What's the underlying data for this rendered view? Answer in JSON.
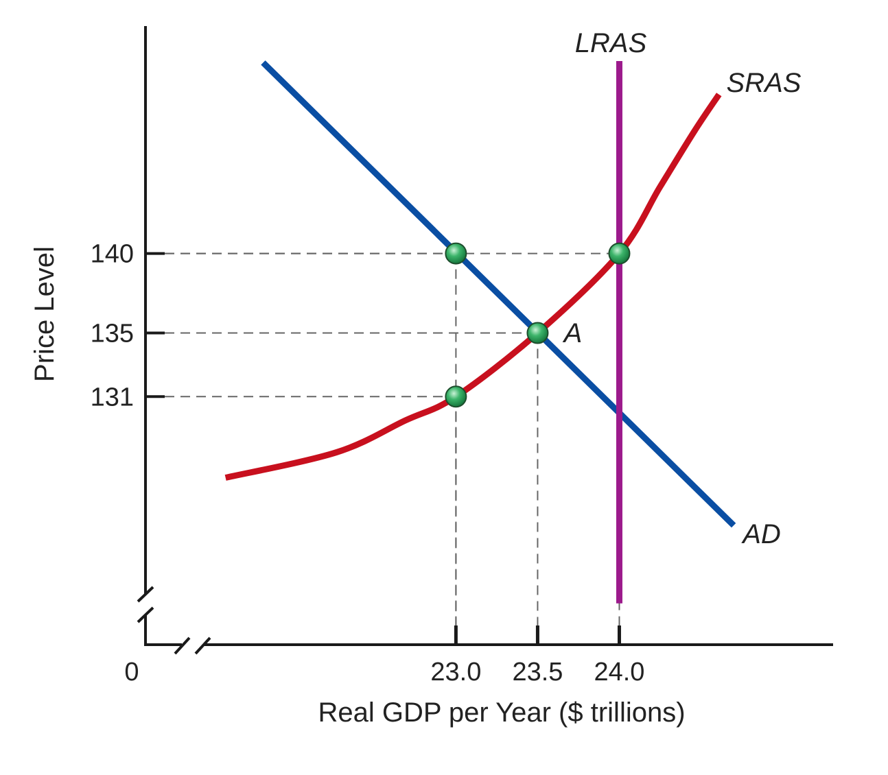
{
  "chart_data": {
    "type": "line",
    "title": "",
    "xlabel": "Real GDP per Year ($ trillions)",
    "ylabel": "Price Level",
    "xlim": [
      21.1,
      25.3
    ],
    "ylim": [
      115.4,
      154.3
    ],
    "origin_label": "0",
    "axis_breaks": true,
    "grid": false,
    "x_ticks": [
      {
        "value": 23.0,
        "label": "23.0"
      },
      {
        "value": 23.5,
        "label": "23.5"
      },
      {
        "value": 24.0,
        "label": "24.0"
      }
    ],
    "y_ticks": [
      {
        "value": 140,
        "label": "140"
      },
      {
        "value": 135,
        "label": "135"
      },
      {
        "value": 131,
        "label": "131"
      }
    ],
    "series": [
      {
        "name": "AD",
        "color": "#0a4ea3",
        "points": [
          [
            21.82,
            152.0
          ],
          [
            24.7,
            122.9
          ]
        ]
      },
      {
        "name": "SRAS",
        "color": "#c8101e",
        "points": [
          [
            21.59,
            125.9
          ],
          [
            22.27,
            127.5
          ],
          [
            22.69,
            129.5
          ],
          [
            23.0,
            131
          ],
          [
            23.5,
            135
          ],
          [
            24.0,
            140
          ],
          [
            24.25,
            144.2
          ],
          [
            24.46,
            147.7
          ],
          [
            24.61,
            150.0
          ]
        ]
      },
      {
        "name": "LRAS",
        "color": "#9c1a8c",
        "points": [
          [
            24.0,
            152.1
          ],
          [
            24.0,
            118.0
          ]
        ]
      }
    ],
    "marked_points": [
      {
        "x": 23.0,
        "y": 140,
        "label": ""
      },
      {
        "x": 24.0,
        "y": 140,
        "label": ""
      },
      {
        "x": 23.5,
        "y": 135,
        "label": "A"
      },
      {
        "x": 23.0,
        "y": 131,
        "label": ""
      }
    ],
    "point_color": "#2fa85a"
  }
}
